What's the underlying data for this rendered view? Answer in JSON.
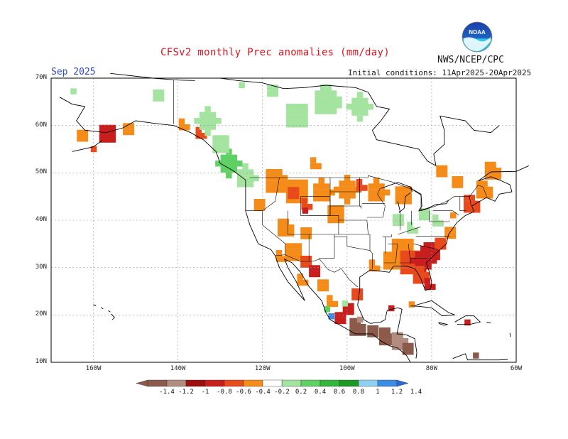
{
  "title": "CFSv2 monthly Prec anomalies (mm/day)",
  "agency": "NWS/NCEP/CPC",
  "logo_text": "NOAA",
  "forecast_month": "Sep 2025",
  "initial_conditions": "Initial conditions: 11Apr2025-20Apr2025",
  "map": {
    "projection": "lat-lon",
    "lon_range": [
      -170,
      -60
    ],
    "lat_range": [
      10,
      70
    ],
    "lat_ticks": [
      "10N",
      "20N",
      "30N",
      "40N",
      "50N",
      "60N",
      "70N"
    ],
    "lon_ticks": [
      "160W",
      "140W",
      "120W",
      "100W",
      "80W",
      "60W"
    ],
    "grid": true
  },
  "legend": {
    "labels": [
      "-1.4",
      "-1.2",
      "-1",
      "-0.8",
      "-0.6",
      "-0.4",
      "-0.2",
      "0.2",
      "0.4",
      "0.6",
      "0.8",
      "1",
      "1.2",
      "1.4"
    ],
    "colors": [
      "#8b5a4a",
      "#b08d80",
      "#9c0f0f",
      "#c81e1e",
      "#e84a1c",
      "#f58c1a",
      "#ffffff",
      "#a4e3a0",
      "#5fd064",
      "#34b53c",
      "#1a9a24",
      "#8fd0f0",
      "#3c8ce6",
      "#2a6ad8"
    ]
  },
  "chart_data": {
    "type": "heatmap",
    "variable": "Prec anomalies (mm/day)",
    "regions": [
      {
        "region": "Southeast US / Georgia-Carolinas coast",
        "anomaly": -0.8
      },
      {
        "region": "Florida",
        "anomaly": -0.6
      },
      {
        "region": "Gulf coast (Louisiana-Alabama)",
        "anomaly": -0.6
      },
      {
        "region": "Southern Mexico / Guatemala",
        "anomaly": -1.2
      },
      {
        "region": "Northern Rockies / Montana",
        "anomaly": -0.4
      },
      {
        "region": "Upper Midwest",
        "anomaly": -0.4
      },
      {
        "region": "Southern Alaska",
        "anomaly": -0.6
      },
      {
        "region": "British Columbia coast",
        "anomaly": 0.4
      },
      {
        "region": "Northern Canada",
        "anomaly": 0.2
      },
      {
        "region": "Ohio Valley",
        "anomaly": 0.2
      },
      {
        "region": "Western Mexico (Jalisco coast)",
        "anomaly": 1.0
      },
      {
        "region": "New England / Maritimes",
        "anomaly": -0.4
      }
    ]
  }
}
